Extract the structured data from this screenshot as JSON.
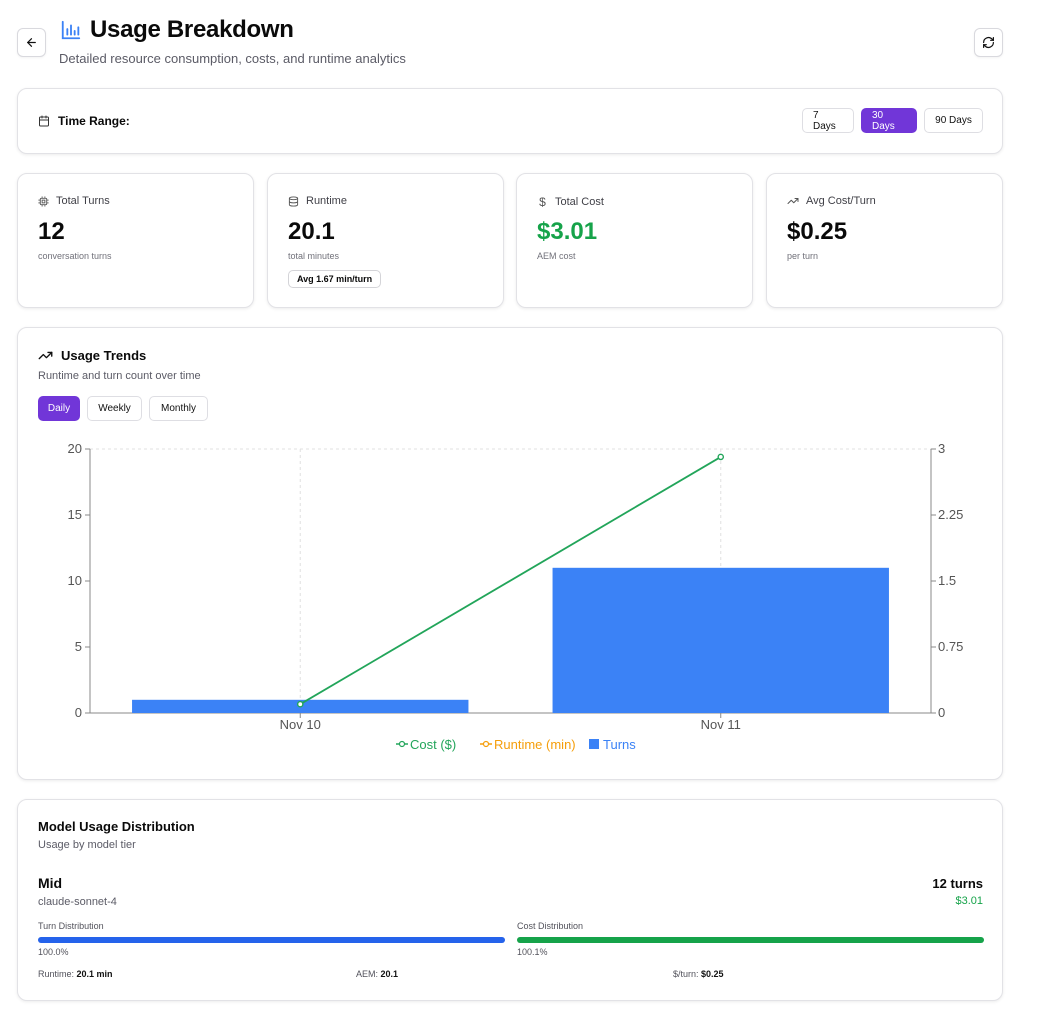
{
  "header": {
    "title": "Usage Breakdown",
    "subtitle": "Detailed resource consumption, costs, and runtime analytics"
  },
  "time_range": {
    "label": "Time Range:",
    "options": [
      "7 Days",
      "30 Days",
      "90 Days"
    ],
    "selected": "30 Days"
  },
  "stats": {
    "turns": {
      "label": "Total Turns",
      "value": "12",
      "sub": "conversation turns"
    },
    "runtime": {
      "label": "Runtime",
      "value": "20.1",
      "sub": "total minutes",
      "badge": "Avg 1.67 min/turn"
    },
    "cost": {
      "label": "Total Cost",
      "value": "$3.01",
      "sub": "AEM cost"
    },
    "avg_cost": {
      "label": "Avg Cost/Turn",
      "value": "$0.25",
      "sub": "per turn"
    }
  },
  "trends": {
    "title": "Usage Trends",
    "subtitle": "Runtime and turn count over time",
    "views": [
      "Daily",
      "Weekly",
      "Monthly"
    ],
    "selected_view": "Daily"
  },
  "chart_data": {
    "type": "bar",
    "categories": [
      "Nov 10",
      "Nov 11"
    ],
    "series": [
      {
        "name": "Cost ($)",
        "type": "line",
        "axis": "right",
        "values": [
          0.1,
          2.91
        ],
        "color": "#22a55a"
      },
      {
        "name": "Runtime (min)",
        "type": "line",
        "axis": "right",
        "values": [
          null,
          null
        ],
        "color": "#f59e0b"
      },
      {
        "name": "Turns",
        "type": "bar",
        "axis": "left",
        "values": [
          1,
          11
        ],
        "color": "#3b82f6"
      }
    ],
    "left_ylim": [
      0,
      20
    ],
    "left_ticks": [
      "0",
      "5",
      "10",
      "15",
      "20"
    ],
    "right_ylim": [
      0,
      3
    ],
    "right_ticks": [
      "0",
      "0.75",
      "1.5",
      "2.25",
      "3"
    ],
    "legend_position": "bottom",
    "grid": true
  },
  "models": {
    "title": "Model Usage Distribution",
    "subtitle": "Usage by model tier",
    "items": [
      {
        "tier": "Mid",
        "model": "claude-sonnet-4",
        "turns": "12 turns",
        "cost": "$3.01",
        "turn_dist_label": "Turn Distribution",
        "turn_dist_value": "100.0%",
        "turn_dist_fraction": 1.0,
        "cost_dist_label": "Cost Distribution",
        "cost_dist_value": "100.1%",
        "cost_dist_fraction": 1.0,
        "runtime_label": "Runtime:",
        "runtime_value": "20.1 min",
        "aem_label": "AEM:",
        "aem_value": "20.1",
        "per_turn_label": "$/turn:",
        "per_turn_value": "$0.25"
      }
    ]
  },
  "colors": {
    "accent": "#7136d8",
    "blue_bar": "#2563eb",
    "green": "#16a34a"
  }
}
